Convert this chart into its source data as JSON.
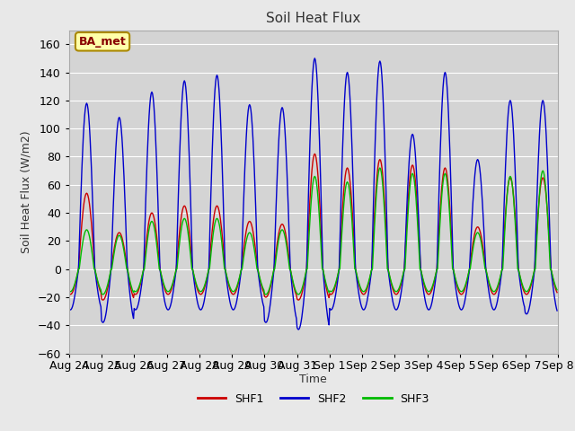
{
  "title": "Soil Heat Flux",
  "xlabel": "Time",
  "ylabel": "Soil Heat Flux (W/m2)",
  "ylim": [
    -60,
    170
  ],
  "yticks": [
    -60,
    -40,
    -20,
    0,
    20,
    40,
    60,
    80,
    100,
    120,
    140,
    160
  ],
  "color_shf1": "#cc0000",
  "color_shf2": "#0000cc",
  "color_shf3": "#00bb00",
  "fig_facecolor": "#e8e8e8",
  "ax_facecolor": "#d4d4d4",
  "annotation_text": "BA_met",
  "annotation_bg": "#ffffaa",
  "annotation_border": "#aa8800",
  "legend_colors": [
    "#cc0000",
    "#0000cc",
    "#00bb00"
  ],
  "legend_labels": [
    "SHF1",
    "SHF2",
    "SHF3"
  ],
  "x_tick_labels": [
    "Aug 24",
    "Aug 25",
    "Aug 26",
    "Aug 27",
    "Aug 28",
    "Aug 29",
    "Aug 30",
    "Aug 31",
    "Sep 1",
    "Sep 2",
    "Sep 3",
    "Sep 4",
    "Sep 5",
    "Sep 6",
    "Sep 7",
    "Sep 8"
  ],
  "num_days": 15,
  "points_per_day": 48,
  "amp2_day": [
    118,
    108,
    126,
    134,
    138,
    117,
    115,
    150,
    140,
    148,
    96,
    140,
    78,
    120,
    120
  ],
  "amp2_night": [
    29,
    38,
    29,
    29,
    29,
    29,
    38,
    43,
    29,
    29,
    29,
    29,
    29,
    29,
    32
  ],
  "amp1_day": [
    54,
    26,
    40,
    45,
    45,
    34,
    32,
    82,
    72,
    78,
    74,
    72,
    30,
    65,
    65
  ],
  "amp1_night": [
    18,
    22,
    18,
    18,
    18,
    18,
    20,
    22,
    18,
    18,
    18,
    18,
    18,
    18,
    18
  ],
  "amp3_day": [
    28,
    24,
    34,
    36,
    36,
    26,
    28,
    66,
    62,
    72,
    68,
    68,
    26,
    66,
    70
  ],
  "amp3_night": [
    16,
    18,
    16,
    16,
    16,
    16,
    18,
    18,
    16,
    16,
    16,
    16,
    16,
    16,
    16
  ]
}
